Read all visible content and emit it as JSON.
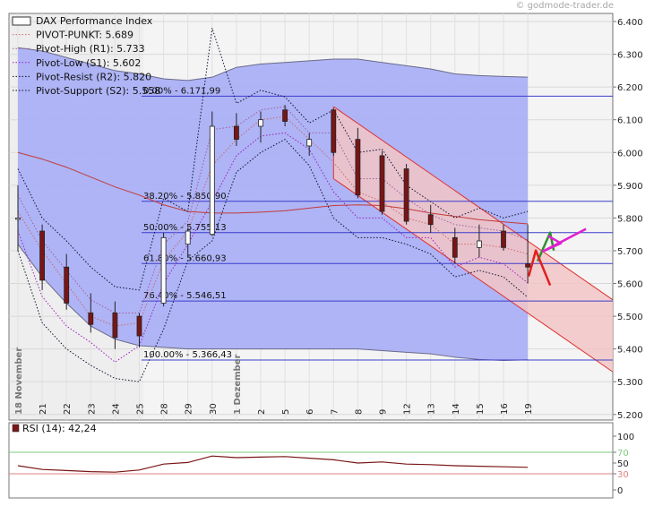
{
  "watermark": "© godmode-trader.de",
  "chart_data": [
    {
      "type": "candlestick",
      "title": "DAX Performance Index",
      "x_labels": [
        "18 November",
        "21",
        "22",
        "23",
        "24",
        "25",
        "28",
        "29",
        "30",
        "1 Dezember",
        "2",
        "5",
        "6",
        "7",
        "8",
        "9",
        "12",
        "13",
        "14",
        "15",
        "16",
        "19"
      ],
      "ylim": [
        5200,
        6420
      ],
      "y_ticks": [
        5200,
        5300,
        5400,
        5500,
        5600,
        5700,
        5800,
        5900,
        6000,
        6100,
        6200,
        6300,
        6400
      ],
      "y_tick_labels": [
        "5.200",
        "5.300",
        "5.400",
        "5.500",
        "5.600",
        "5.700",
        "5.800",
        "5.900",
        "6.000",
        "6.100",
        "6.200",
        "6.300",
        "6.400"
      ],
      "legend": [
        {
          "label": "DAX Performance Index",
          "style": "box"
        },
        {
          "label": "PIVOT-PUNKT: 5.689",
          "style": "dotted",
          "color": "#d06868"
        },
        {
          "label": "Pivot-High (R1): 5.733",
          "style": "dotted",
          "color": "#a060a0"
        },
        {
          "label": "Pivot-Low (S1): 5.602",
          "style": "dotted",
          "color": "#a020c0"
        },
        {
          "label": "Pivot-Resist (R2): 5.820",
          "style": "dotted",
          "color": "#101030"
        },
        {
          "label": "Pivot-Support (S2): 5.558",
          "style": "dotted",
          "color": "#101030"
        }
      ],
      "candles": [
        {
          "x": "18 November",
          "open": 5800,
          "high": 5900,
          "low": 5700,
          "close": 5800
        },
        {
          "x": "21",
          "open": 5760,
          "high": 5780,
          "low": 5580,
          "close": 5610
        },
        {
          "x": "22",
          "open": 5650,
          "high": 5690,
          "low": 5520,
          "close": 5540
        },
        {
          "x": "23",
          "open": 5510,
          "high": 5570,
          "low": 5450,
          "close": 5475
        },
        {
          "x": "24",
          "open": 5510,
          "high": 5545,
          "low": 5400,
          "close": 5435
        },
        {
          "x": "25",
          "open": 5500,
          "high": 5510,
          "low": 5405,
          "close": 5440
        },
        {
          "x": "28",
          "open": 5540,
          "high": 5755,
          "low": 5530,
          "close": 5740
        },
        {
          "x": "29",
          "open": 5720,
          "high": 5770,
          "low": 5680,
          "close": 5760
        },
        {
          "x": "30",
          "open": 5750,
          "high": 6125,
          "low": 5745,
          "close": 6080
        },
        {
          "x": "1 Dezember",
          "open": 6080,
          "high": 6120,
          "low": 6020,
          "close": 6040
        },
        {
          "x": "2",
          "open": 6080,
          "high": 6125,
          "low": 6030,
          "close": 6100
        },
        {
          "x": "5",
          "open": 6130,
          "high": 6145,
          "low": 6080,
          "close": 6095
        },
        {
          "x": "6",
          "open": 6020,
          "high": 6060,
          "low": 5990,
          "close": 6040
        },
        {
          "x": "7",
          "open": 6130,
          "high": 6135,
          "low": 5990,
          "close": 6000
        },
        {
          "x": "8",
          "open": 6040,
          "high": 6075,
          "low": 5860,
          "close": 5870
        },
        {
          "x": "9",
          "open": 5990,
          "high": 6005,
          "low": 5810,
          "close": 5820
        },
        {
          "x": "12",
          "open": 5950,
          "high": 5965,
          "low": 5780,
          "close": 5790
        },
        {
          "x": "13",
          "open": 5810,
          "high": 5840,
          "low": 5755,
          "close": 5780
        },
        {
          "x": "14",
          "open": 5740,
          "high": 5770,
          "low": 5660,
          "close": 5680
        },
        {
          "x": "15",
          "open": 5710,
          "high": 5780,
          "low": 5680,
          "close": 5730
        },
        {
          "x": "16",
          "open": 5760,
          "high": 5780,
          "low": 5700,
          "close": 5710
        },
        {
          "x": "19",
          "open": 5660,
          "high": 5780,
          "low": 5600,
          "close": 5650
        }
      ],
      "series": [
        {
          "role": "bollinger-upper",
          "values": [
            6320,
            6310,
            6290,
            6270,
            6250,
            6240,
            6225,
            6220,
            6230,
            6260,
            6270,
            6275,
            6280,
            6285,
            6285,
            6275,
            6265,
            6255,
            6240,
            6235,
            6232,
            6230
          ]
        },
        {
          "role": "bollinger-lower",
          "values": [
            5720,
            5620,
            5540,
            5470,
            5430,
            5410,
            5405,
            5400,
            5400,
            5400,
            5400,
            5400,
            5400,
            5400,
            5400,
            5395,
            5390,
            5385,
            5375,
            5368,
            5365,
            5367
          ]
        },
        {
          "role": "moving-average",
          "values": [
            6000,
            5980,
            5955,
            5925,
            5895,
            5870,
            5840,
            5820,
            5815,
            5815,
            5818,
            5822,
            5830,
            5838,
            5840,
            5838,
            5828,
            5815,
            5805,
            5795,
            5788,
            5782
          ]
        },
        {
          "role": "pivot-point",
          "values": [
            5820,
            5700,
            5600,
            5500,
            5470,
            5480,
            5670,
            5760,
            5960,
            6040,
            6100,
            6110,
            6040,
            5970,
            5880,
            5850,
            5800,
            5780,
            5720,
            5720,
            5710,
            5690
          ]
        },
        {
          "role": "r1",
          "values": [
            5870,
            5730,
            5640,
            5550,
            5510,
            5510,
            5720,
            5790,
            6070,
            6080,
            6130,
            6140,
            6060,
            6060,
            5920,
            5920,
            5860,
            5810,
            5780,
            5770,
            5760,
            5733
          ]
        },
        {
          "role": "s1",
          "values": [
            5760,
            5560,
            5470,
            5420,
            5360,
            5410,
            5600,
            5720,
            5850,
            5990,
            6050,
            6060,
            6010,
            5880,
            5800,
            5800,
            5740,
            5740,
            5650,
            5680,
            5660,
            5602
          ]
        },
        {
          "role": "r2",
          "values": [
            5950,
            5800,
            5730,
            5650,
            5590,
            5580,
            5860,
            5820,
            6380,
            6150,
            6190,
            6170,
            6090,
            6130,
            6000,
            6010,
            5900,
            5850,
            5800,
            5830,
            5800,
            5820
          ]
        },
        {
          "role": "s2",
          "values": [
            5700,
            5480,
            5400,
            5350,
            5310,
            5300,
            5460,
            5670,
            5730,
            5940,
            6000,
            6040,
            5960,
            5800,
            5740,
            5740,
            5720,
            5690,
            5620,
            5640,
            5620,
            5558
          ]
        }
      ],
      "fibonacci": [
        {
          "label": "0.00% - 6.171,99",
          "value": 6171.99
        },
        {
          "label": "38.20% - 5.850,90",
          "value": 5850.9
        },
        {
          "label": "50.00% - 5.755,13",
          "value": 5755.13
        },
        {
          "label": "61.80% - 5.660,93",
          "value": 5660.93
        },
        {
          "label": "76.40% - 5.546,51",
          "value": 5546.51
        },
        {
          "label": "100.00% - 5.366,43",
          "value": 5366.43
        }
      ],
      "trend_channel": {
        "upper": [
          {
            "x": "7",
            "y": 6140
          },
          {
            "x": "19 +2.7",
            "y": 5550
          }
        ],
        "lower": [
          {
            "x": "7",
            "y": 5920
          },
          {
            "x": "19 +2.7",
            "y": 5330
          }
        ]
      },
      "colors": {
        "band": "#aab0f4",
        "channel": "#f2c6c6",
        "candle": "#7a1515",
        "ma": "#c23a3a",
        "grid": "#d8d8d8",
        "arrow_green": "#2f8f2f",
        "arrow_red": "#e02020",
        "arrow_magenta": "#e020d0"
      }
    },
    {
      "type": "line",
      "title": "RSI (14): 42,24",
      "ylim": [
        0,
        100
      ],
      "y_ticks": [
        0,
        30,
        50,
        70,
        100
      ],
      "y_tick_labels": [
        "0",
        "30",
        "50",
        "70",
        "100"
      ],
      "reference_lines": [
        70,
        30
      ],
      "values": [
        45,
        38,
        36,
        34,
        33,
        37,
        48,
        51,
        63,
        60,
        61,
        62,
        59,
        56,
        50,
        52,
        48,
        47,
        45,
        44,
        43,
        42
      ]
    }
  ]
}
